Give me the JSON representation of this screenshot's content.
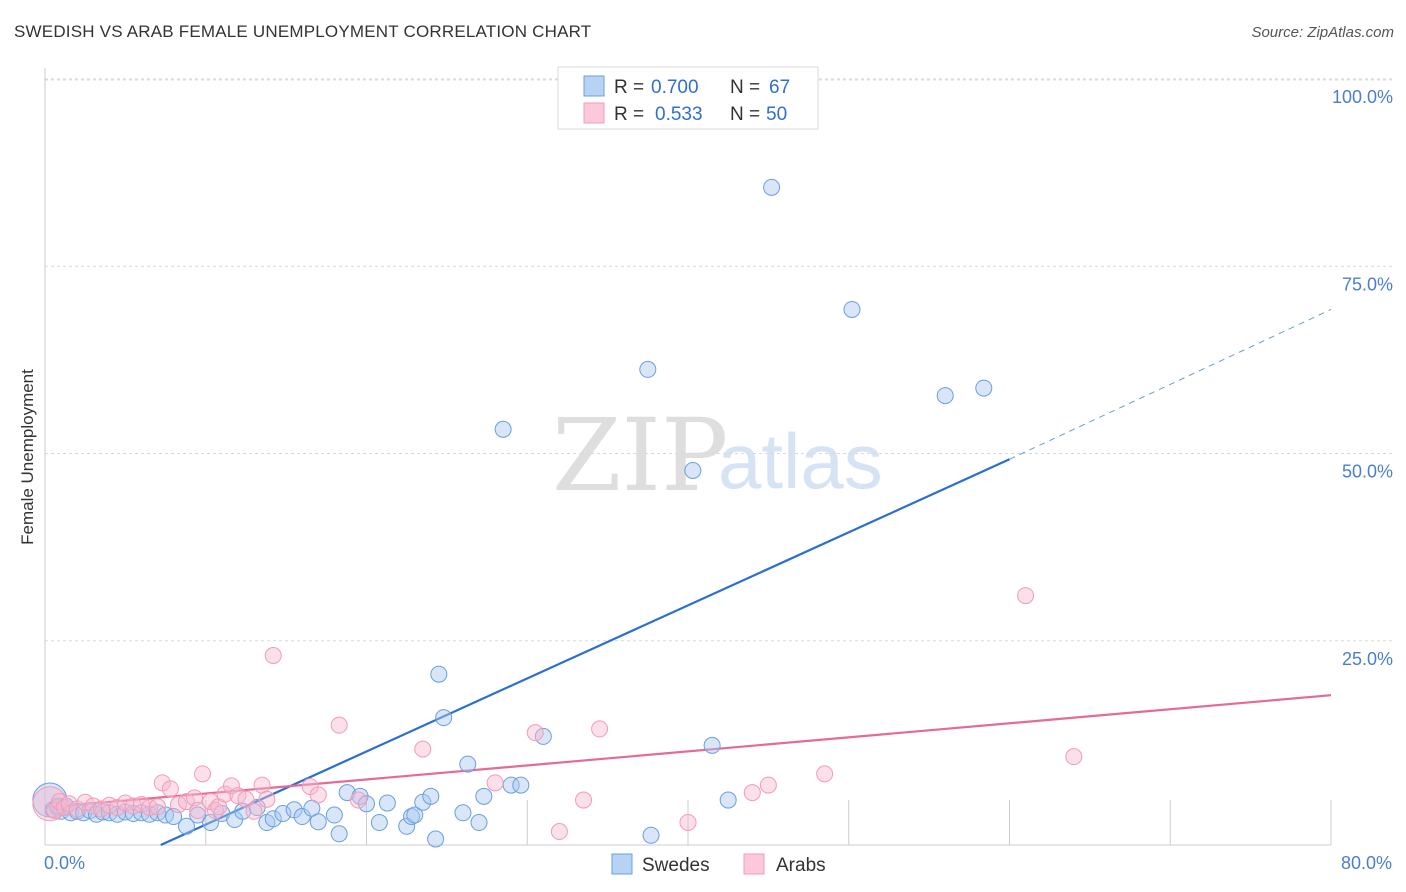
{
  "header": {
    "title": "SWEDISH VS ARAB FEMALE UNEMPLOYMENT CORRELATION CHART",
    "source": "Source: ZipAtlas.com"
  },
  "watermark": {
    "zip": "ZIP",
    "atlas": "atlas"
  },
  "legend": {
    "swedes": {
      "r_label": "R =",
      "r_value": "0.700",
      "n_label": "N =",
      "n_value": "67"
    },
    "arabs": {
      "r_label": "R =",
      "r_value": "0.533",
      "n_label": "N =",
      "n_value": "50"
    }
  },
  "bottom_legend": {
    "swedes": "Swedes",
    "arabs": "Arabs"
  },
  "chart_data": {
    "type": "scatter",
    "title": "SWEDISH VS ARAB FEMALE UNEMPLOYMENT CORRELATION CHART",
    "xlabel": "",
    "ylabel": "Female Unemployment",
    "xlim": [
      0,
      80
    ],
    "ylim": [
      0,
      100
    ],
    "x_tick_labels": [
      "0.0%",
      "80.0%"
    ],
    "y_tick_labels": [
      "100.0%",
      "75.0%",
      "50.0%",
      "25.0%"
    ],
    "y_ticks": [
      100,
      75,
      50,
      25
    ],
    "colors": {
      "swedes": "#6a9fe0",
      "arabs": "#f29bb8",
      "swedes_line": "#2a6fd0",
      "arabs_line": "#e56a95"
    },
    "series": [
      {
        "name": "Swedes",
        "r": 0.7,
        "n": 67,
        "trend": {
          "x0": 7.2,
          "y0": 0,
          "x1": 60,
          "y1": 51.5,
          "dash_x1": 80,
          "dash_y1": 71.5
        },
        "points": [
          [
            0.3,
            6
          ],
          [
            0.5,
            4.7
          ],
          [
            0.8,
            5
          ],
          [
            1,
            4.5
          ],
          [
            1.3,
            5.2
          ],
          [
            1.6,
            4.3
          ],
          [
            2,
            4.5
          ],
          [
            2.4,
            4.3
          ],
          [
            2.8,
            4.6
          ],
          [
            3.2,
            4.1
          ],
          [
            3.6,
            4.4
          ],
          [
            4,
            4.3
          ],
          [
            4.5,
            4.1
          ],
          [
            5,
            4.4
          ],
          [
            5.5,
            4.2
          ],
          [
            6,
            4.3
          ],
          [
            6.5,
            4.1
          ],
          [
            7,
            4.3
          ],
          [
            7.5,
            4
          ],
          [
            8,
            3.8
          ],
          [
            8.8,
            2.5
          ],
          [
            9.5,
            4
          ],
          [
            10.3,
            3
          ],
          [
            11,
            4.2
          ],
          [
            11.8,
            3.4
          ],
          [
            12.3,
            4.5
          ],
          [
            13.2,
            5
          ],
          [
            13.8,
            3
          ],
          [
            14.2,
            3.5
          ],
          [
            14.8,
            4.2
          ],
          [
            15.5,
            4.7
          ],
          [
            16,
            3.8
          ],
          [
            16.6,
            4.9
          ],
          [
            17,
            3.1
          ],
          [
            18,
            4
          ],
          [
            18.3,
            1.5
          ],
          [
            18.8,
            7
          ],
          [
            19.6,
            6.5
          ],
          [
            20,
            5.5
          ],
          [
            20.8,
            3
          ],
          [
            21.3,
            5.6
          ],
          [
            22.5,
            2.5
          ],
          [
            22.8,
            3.8
          ],
          [
            23,
            4
          ],
          [
            23.5,
            5.7
          ],
          [
            24,
            6.5
          ],
          [
            24.3,
            0.8
          ],
          [
            24.5,
            22.8
          ],
          [
            24.8,
            17
          ],
          [
            26,
            4.3
          ],
          [
            26.3,
            10.8
          ],
          [
            27,
            3
          ],
          [
            27.3,
            6.5
          ],
          [
            28.5,
            55.5
          ],
          [
            29,
            8
          ],
          [
            29.6,
            8
          ],
          [
            31,
            14.5
          ],
          [
            37.5,
            63.5
          ],
          [
            40.3,
            50
          ],
          [
            41.5,
            13.3
          ],
          [
            42.5,
            6
          ],
          [
            45.2,
            87.8
          ],
          [
            50.2,
            71.5
          ],
          [
            56,
            60
          ],
          [
            58.4,
            61
          ],
          [
            37.7,
            1.3
          ],
          [
            0.8,
            5.2
          ]
        ]
      },
      {
        "name": "Arabs",
        "r": 0.533,
        "n": 50,
        "trend": {
          "x0": 0,
          "y0": 5,
          "x1": 80,
          "y1": 20
        },
        "points": [
          [
            0.3,
            5.5
          ],
          [
            0.6,
            4.6
          ],
          [
            0.9,
            5.8
          ],
          [
            1.2,
            5
          ],
          [
            1.5,
            5.5
          ],
          [
            2,
            4.8
          ],
          [
            2.5,
            5.7
          ],
          [
            3,
            5.2
          ],
          [
            3.5,
            4.8
          ],
          [
            4,
            5.3
          ],
          [
            4.5,
            5
          ],
          [
            5,
            5.6
          ],
          [
            5.5,
            5.2
          ],
          [
            6,
            5.4
          ],
          [
            6.5,
            5
          ],
          [
            7,
            5.1
          ],
          [
            7.3,
            8.3
          ],
          [
            7.8,
            7.5
          ],
          [
            8.3,
            5.4
          ],
          [
            8.8,
            5.8
          ],
          [
            9.3,
            6.3
          ],
          [
            9.5,
            4.6
          ],
          [
            9.8,
            9.5
          ],
          [
            10.3,
            5.8
          ],
          [
            10.6,
            4.6
          ],
          [
            10.8,
            5.1
          ],
          [
            11.2,
            6.8
          ],
          [
            11.6,
            7.9
          ],
          [
            12,
            6.6
          ],
          [
            12.5,
            6.1
          ],
          [
            13,
            4.5
          ],
          [
            13.5,
            8
          ],
          [
            13.8,
            6.1
          ],
          [
            14.2,
            25.3
          ],
          [
            16.5,
            7.8
          ],
          [
            17,
            6.7
          ],
          [
            18.3,
            16
          ],
          [
            19.5,
            6
          ],
          [
            23.5,
            12.8
          ],
          [
            28,
            8.3
          ],
          [
            30.5,
            15
          ],
          [
            32,
            1.8
          ],
          [
            33.5,
            6
          ],
          [
            34.5,
            15.5
          ],
          [
            45,
            8
          ],
          [
            48.5,
            9.5
          ],
          [
            61,
            33.3
          ],
          [
            64,
            11.8
          ],
          [
            44,
            7
          ],
          [
            40,
            3
          ]
        ]
      }
    ]
  }
}
